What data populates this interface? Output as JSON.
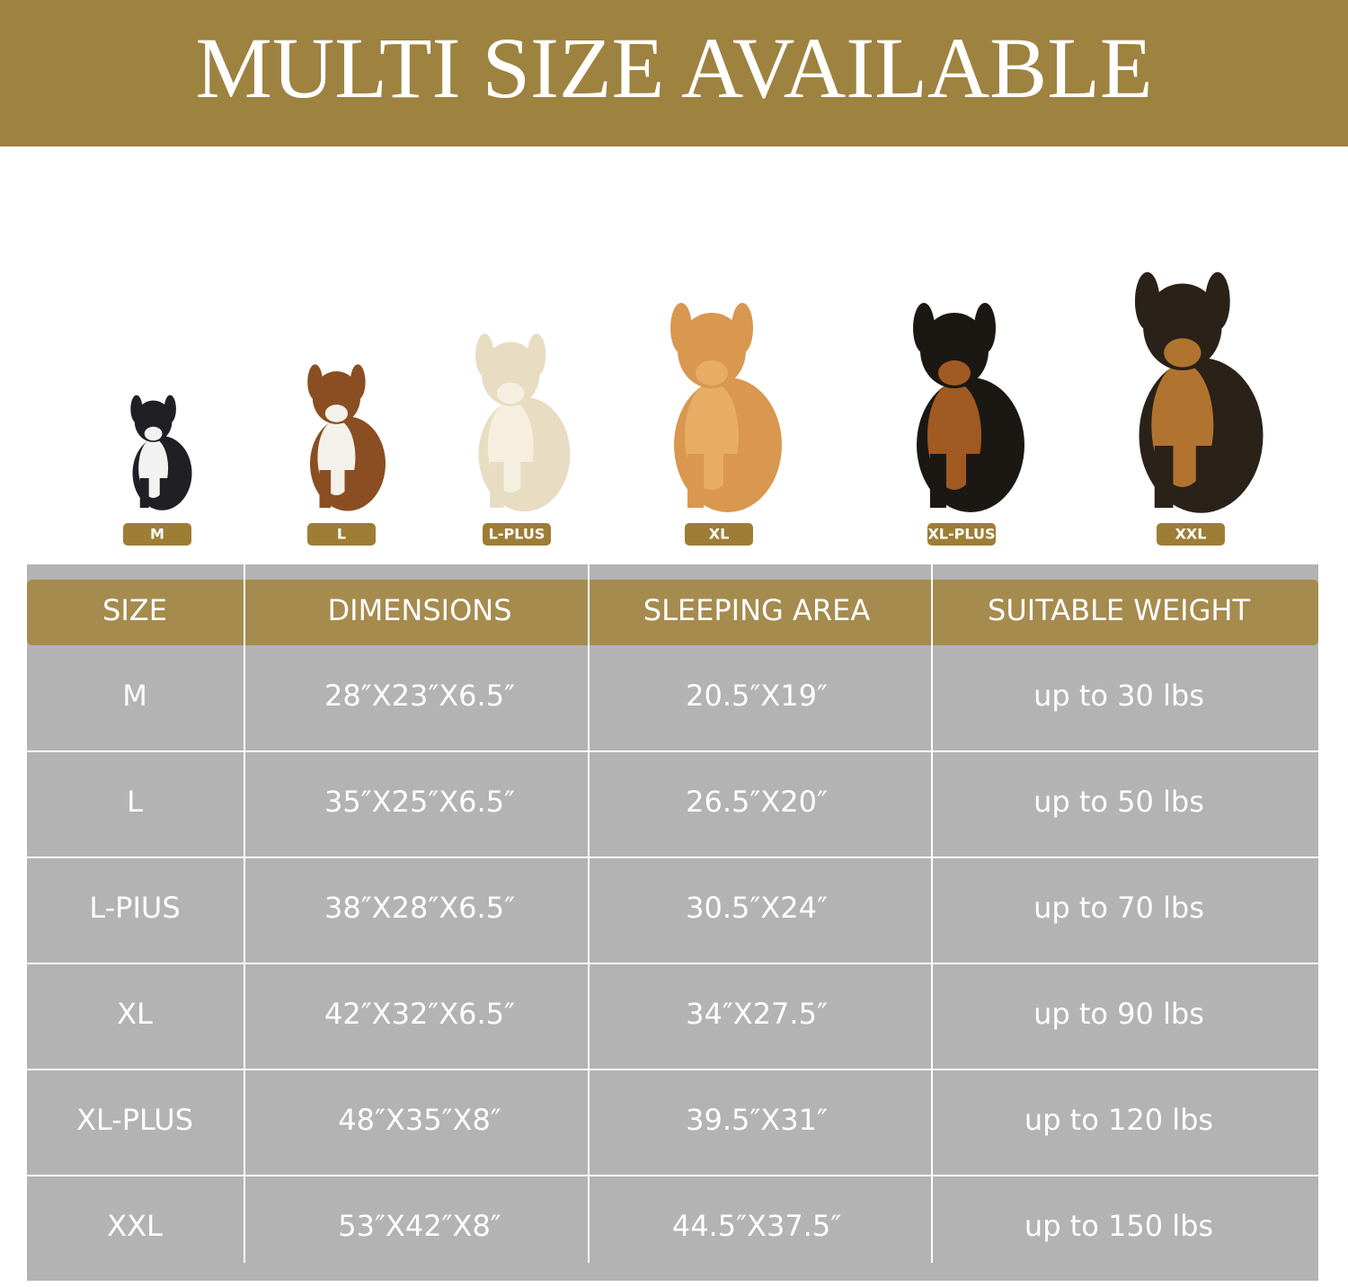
{
  "header": {
    "title": "MULTI SIZE AVAILABLE"
  },
  "dogs": [
    {
      "label": "M"
    },
    {
      "label": "L"
    },
    {
      "label": "L-PLUS"
    },
    {
      "label": "XL"
    },
    {
      "label": "XL-PLUS"
    },
    {
      "label": "XXL"
    }
  ],
  "table": {
    "headers": [
      "SIZE",
      "DIMENSIONS",
      "SLEEPING AREA",
      "SUITABLE WEIGHT"
    ],
    "rows": [
      [
        "M",
        "28″X23″X6.5″",
        "20.5″X19″",
        "up to 30 lbs"
      ],
      [
        "L",
        "35″X25″X6.5″",
        "26.5″X20″",
        "up to 50 lbs"
      ],
      [
        "L-PIUS",
        "38″X28″X6.5″",
        "30.5″X24″",
        "up to 70 lbs"
      ],
      [
        "XL",
        "42″X32″X6.5″",
        "34″X27.5″",
        "up to 90 lbs"
      ],
      [
        "XL-PLUS",
        "48″X35″X8″",
        "39.5″X31″",
        "up to 120 lbs"
      ],
      [
        "XXL",
        "53″X42″X8″",
        "44.5″X37.5″",
        "up to 150 lbs"
      ]
    ]
  }
}
